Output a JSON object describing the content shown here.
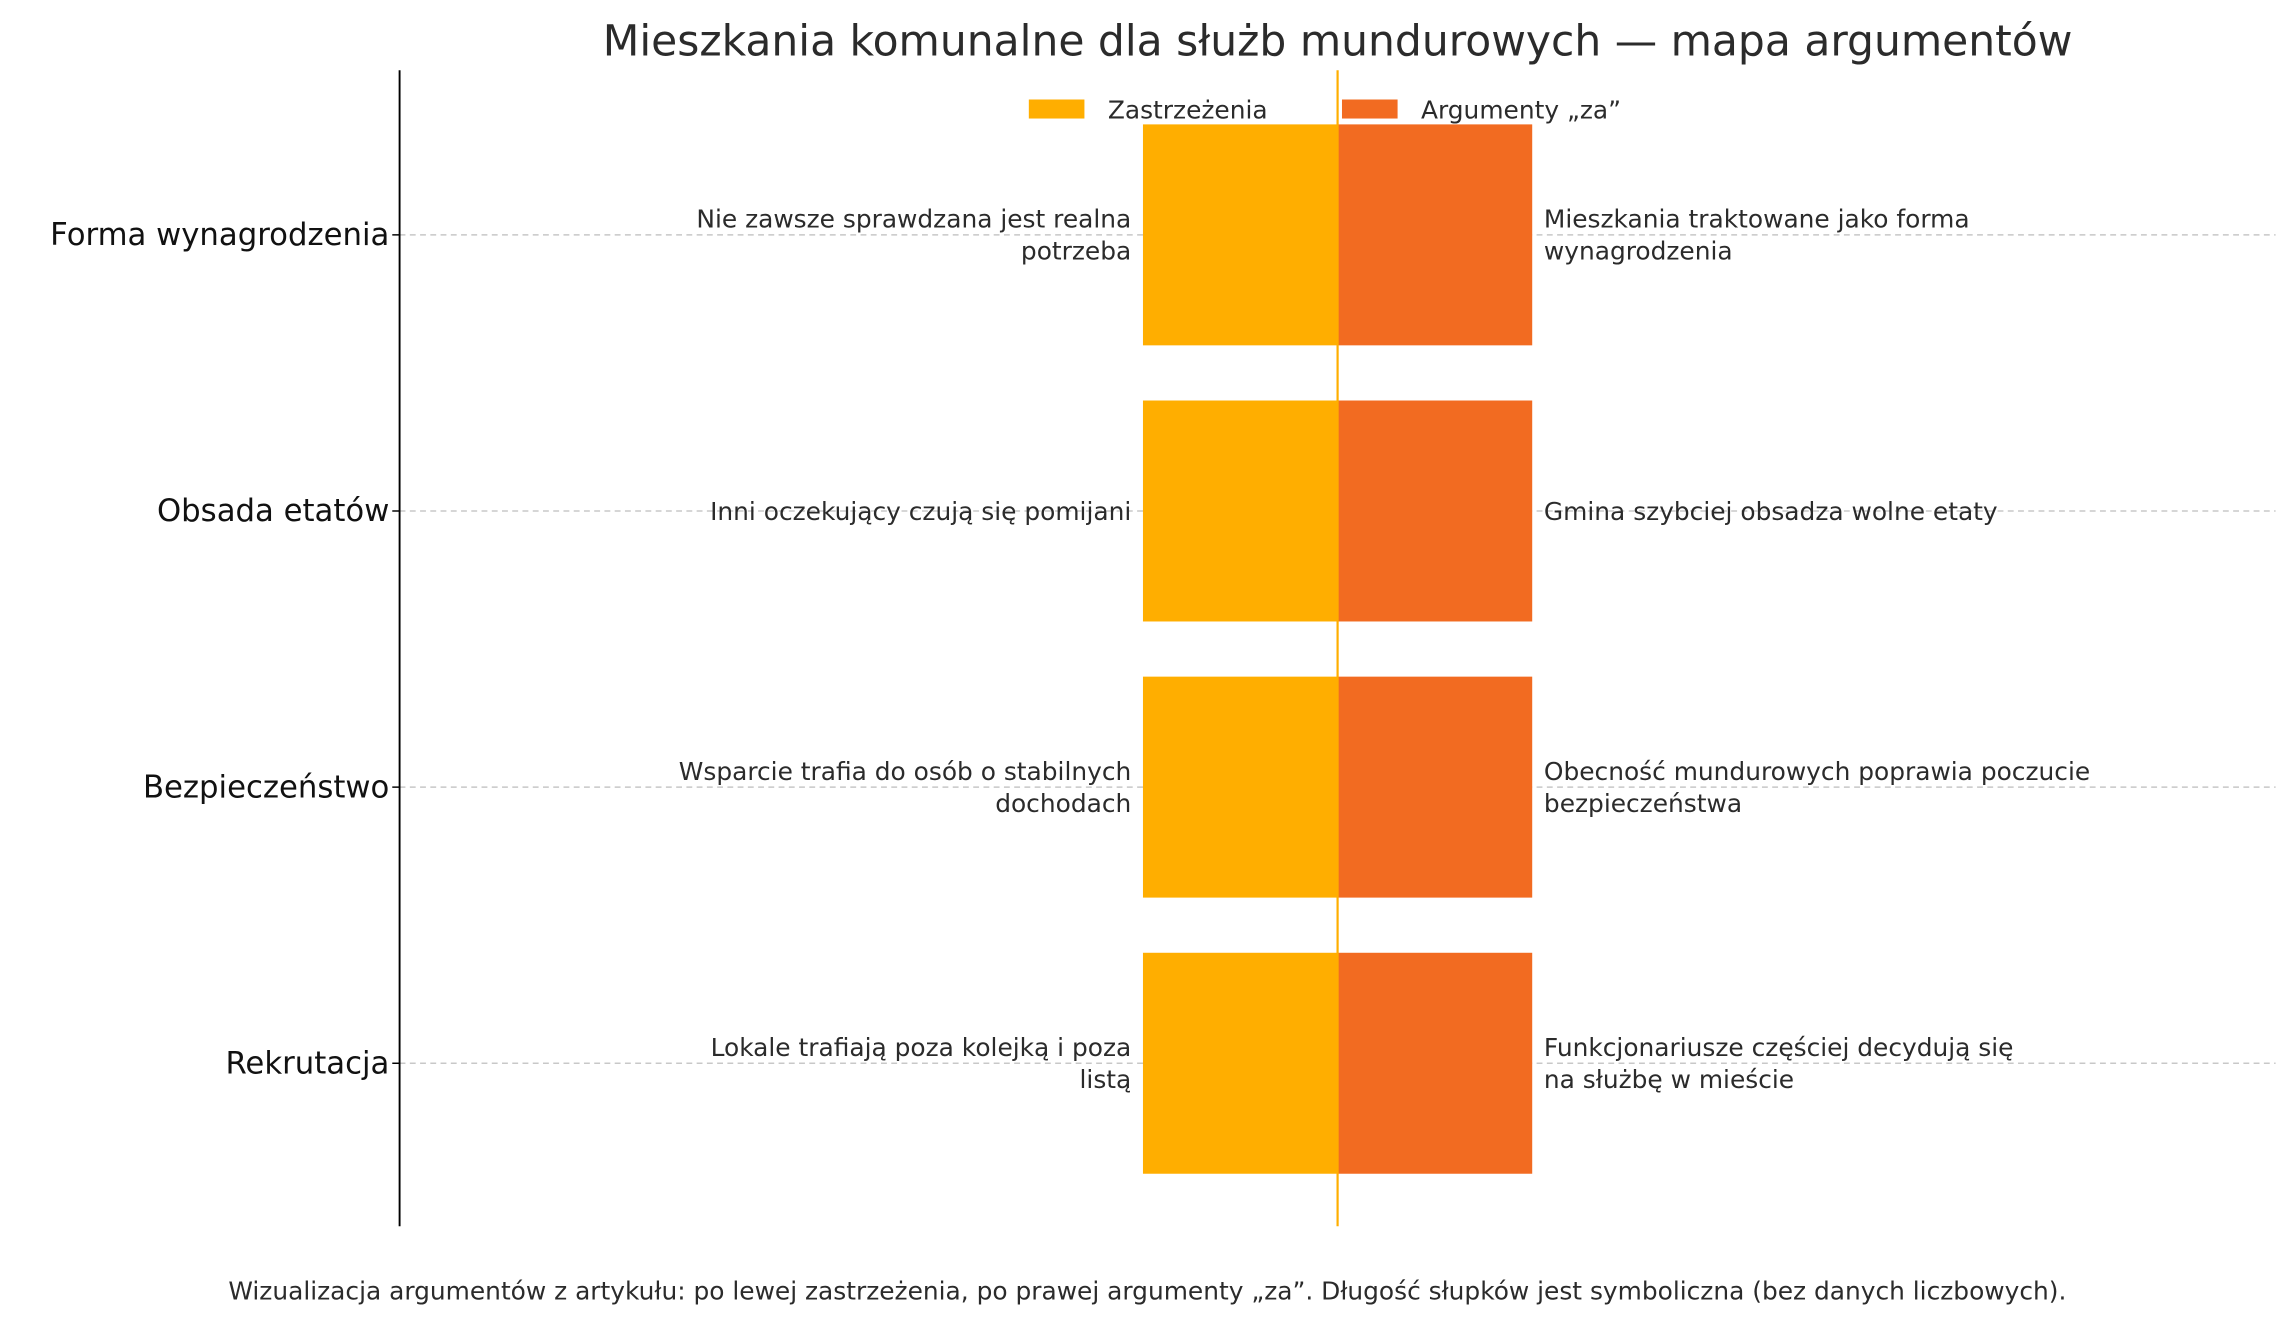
{
  "chart_data": {
    "type": "bar",
    "orientation": "horizontal-diverging",
    "title": "Mieszkania komunalne dla służb mundurowych — mapa argumentów",
    "categories": [
      "Forma wynagrodzenia",
      "Obsada etatów",
      "Bezpieczeństwo",
      "Rekrutacja"
    ],
    "series": [
      {
        "name": "Zastrzeżenia",
        "color": "#FFAE00",
        "values": [
          -1,
          -1,
          -1,
          -1
        ],
        "labels": [
          [
            "Nie zawsze sprawdzana jest realna",
            "potrzeba"
          ],
          [
            "Inni oczekujący czują się pomijani"
          ],
          [
            "Wsparcie trafia do osób o stabilnych",
            "dochodach"
          ],
          [
            "Lokale trafiają poza kolejką i poza",
            "listą"
          ]
        ]
      },
      {
        "name": "Argumenty „za”",
        "color": "#F26B21",
        "values": [
          1,
          1,
          1,
          1
        ],
        "labels": [
          [
            "Mieszkania traktowane jako forma",
            "wynagrodzenia"
          ],
          [
            "Gmina szybciej obsadza wolne etaty"
          ],
          [
            "Obecność mundurowych poprawia poczucie",
            "bezpieczeństwa"
          ],
          [
            "Funkcjonariusze częściej decydują się",
            "na służbę w mieście"
          ]
        ]
      }
    ],
    "xlim": [
      -4.8,
      4.8
    ],
    "center_line_color": "#FFAE00",
    "grid": "horizontal dashed",
    "legend": "top-center",
    "caption": "Wizualizacja argumentów z artykułu: po lewej zastrzeżenia, po prawej argumenty „za”. Długość słupków jest symboliczna (bez danych liczbowych)."
  }
}
